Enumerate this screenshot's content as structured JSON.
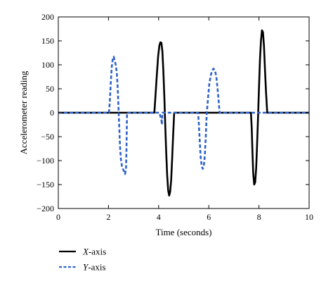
{
  "chart_data": {
    "type": "line",
    "xlabel": "Time (seconds)",
    "ylabel": "Accelerometer reading",
    "xlim": [
      0,
      10
    ],
    "ylim": [
      -200,
      200
    ],
    "xticks": [
      0,
      2,
      4,
      6,
      8,
      10
    ],
    "yticks": [
      -200,
      -150,
      -100,
      -50,
      0,
      50,
      100,
      150,
      200
    ],
    "grid": false,
    "legend_position": "bottom-left-outside",
    "series": [
      {
        "name_italic": "X",
        "name_suffix": "-axis",
        "color": "#000000",
        "style": "solid",
        "points": [
          [
            0,
            0
          ],
          [
            3.83,
            0
          ],
          [
            3.88,
            40
          ],
          [
            3.93,
            80
          ],
          [
            3.98,
            118
          ],
          [
            4.03,
            140
          ],
          [
            4.07,
            147
          ],
          [
            4.11,
            146
          ],
          [
            4.15,
            128
          ],
          [
            4.19,
            85
          ],
          [
            4.23,
            30
          ],
          [
            4.26,
            -20
          ],
          [
            4.3,
            -80
          ],
          [
            4.34,
            -130
          ],
          [
            4.38,
            -162
          ],
          [
            4.42,
            -173
          ],
          [
            4.46,
            -165
          ],
          [
            4.5,
            -140
          ],
          [
            4.54,
            -95
          ],
          [
            4.58,
            -45
          ],
          [
            4.62,
            0
          ],
          [
            7.68,
            0
          ],
          [
            7.71,
            -30
          ],
          [
            7.74,
            -80
          ],
          [
            7.77,
            -125
          ],
          [
            7.81,
            -150
          ],
          [
            7.85,
            -145
          ],
          [
            7.89,
            -115
          ],
          [
            7.93,
            -60
          ],
          [
            7.97,
            0
          ],
          [
            8.0,
            50
          ],
          [
            8.04,
            110
          ],
          [
            8.08,
            150
          ],
          [
            8.12,
            172
          ],
          [
            8.16,
            168
          ],
          [
            8.2,
            140
          ],
          [
            8.24,
            90
          ],
          [
            8.28,
            45
          ],
          [
            8.33,
            0
          ],
          [
            10,
            0
          ]
        ]
      },
      {
        "name_italic": "Y",
        "name_suffix": "-axis",
        "color": "#2e62c9",
        "style": "dashed",
        "points": [
          [
            0,
            0
          ],
          [
            2.02,
            0
          ],
          [
            2.05,
            20
          ],
          [
            2.09,
            60
          ],
          [
            2.13,
            95
          ],
          [
            2.17,
            112
          ],
          [
            2.21,
            117
          ],
          [
            2.25,
            108
          ],
          [
            2.29,
            100
          ],
          [
            2.33,
            85
          ],
          [
            2.37,
            50
          ],
          [
            2.4,
            10
          ],
          [
            2.43,
            -30
          ],
          [
            2.46,
            -70
          ],
          [
            2.5,
            -100
          ],
          [
            2.54,
            -112
          ],
          [
            2.58,
            -118
          ],
          [
            2.62,
            -122
          ],
          [
            2.66,
            -128
          ],
          [
            2.7,
            -118
          ],
          [
            2.72,
            -70
          ],
          [
            2.74,
            0
          ],
          [
            4.04,
            0
          ],
          [
            4.07,
            -8
          ],
          [
            4.11,
            -15
          ],
          [
            4.13,
            -25
          ],
          [
            4.15,
            0
          ],
          [
            5.57,
            0
          ],
          [
            5.6,
            -20
          ],
          [
            5.64,
            -60
          ],
          [
            5.68,
            -95
          ],
          [
            5.72,
            -112
          ],
          [
            5.76,
            -117
          ],
          [
            5.8,
            -112
          ],
          [
            5.84,
            -90
          ],
          [
            5.88,
            -50
          ],
          [
            5.92,
            0
          ],
          [
            5.97,
            30
          ],
          [
            6.02,
            60
          ],
          [
            6.08,
            78
          ],
          [
            6.13,
            88
          ],
          [
            6.19,
            92
          ],
          [
            6.25,
            88
          ],
          [
            6.3,
            75
          ],
          [
            6.35,
            50
          ],
          [
            6.4,
            20
          ],
          [
            6.43,
            0
          ],
          [
            10,
            0
          ]
        ]
      }
    ]
  }
}
